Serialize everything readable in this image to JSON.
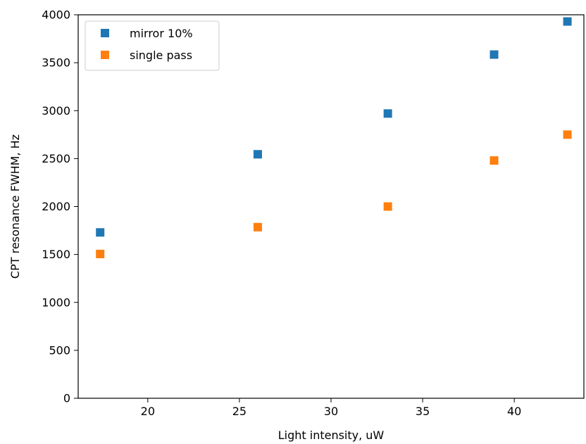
{
  "chart_data": {
    "type": "scatter",
    "title": "",
    "xlabel": "Light intensity, uW",
    "ylabel": "CPT resonance FWHM, Hz",
    "xlim": [
      16.2,
      43.8
    ],
    "ylim": [
      0,
      4000
    ],
    "xticks": [
      20,
      25,
      30,
      35,
      40
    ],
    "yticks": [
      0,
      500,
      1000,
      1500,
      2000,
      2500,
      3000,
      3500,
      4000
    ],
    "grid": false,
    "legend_position": "top-left",
    "marker": "square",
    "series": [
      {
        "name": "mirror 10%",
        "color": "#1f77b4",
        "x": [
          17.4,
          26.0,
          33.1,
          38.9,
          42.9
        ],
        "y": [
          1730,
          2545,
          2970,
          3585,
          3930
        ]
      },
      {
        "name": "single pass",
        "color": "#ff7f0e",
        "x": [
          17.4,
          26.0,
          33.1,
          38.9,
          42.9
        ],
        "y": [
          1505,
          1785,
          2000,
          2480,
          2750
        ]
      }
    ]
  }
}
